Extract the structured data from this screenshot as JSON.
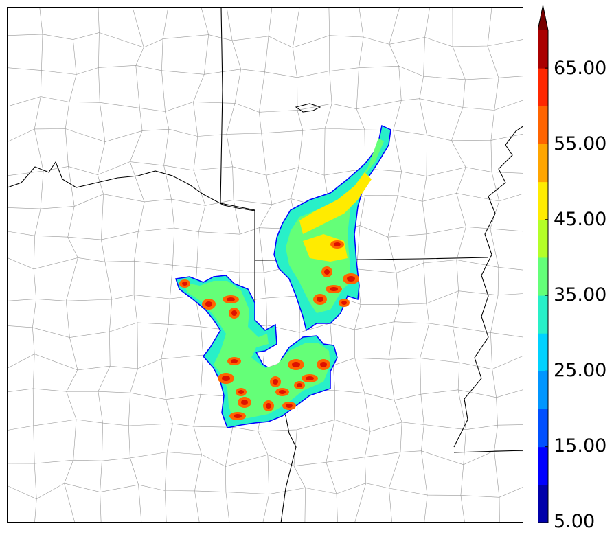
{
  "colorbar": {
    "labels": [
      "5.00",
      "15.00",
      "25.00",
      "35.00",
      "45.00",
      "55.00",
      "65.00"
    ],
    "min": 5,
    "max": 70,
    "step": 5,
    "extend": "max",
    "colors": [
      "#0000aa",
      "#0000ff",
      "#0050ff",
      "#0096ff",
      "#00d2ff",
      "#28f0c8",
      "#64ff78",
      "#b4ff28",
      "#ffeb00",
      "#ffa500",
      "#ff6400",
      "#ff2800",
      "#aa0000",
      "#780000"
    ]
  },
  "map": {
    "field_colors": {
      "low": "#0000ff",
      "mid_low": "#28f0c8",
      "mid": "#64ff78",
      "mid_high": "#b4ff28",
      "high": "#ffeb00",
      "very_high": "#ff6400",
      "peak": "#dd1100"
    },
    "county_line_color": "#999999",
    "state_line_color": "#000000"
  }
}
